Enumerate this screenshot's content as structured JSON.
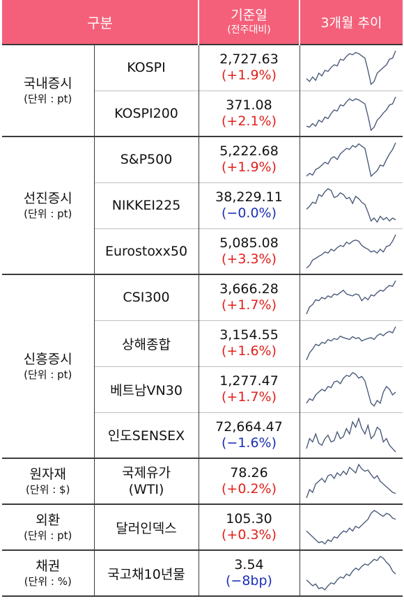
{
  "header": {
    "category": "구분",
    "base_date": "기준일",
    "base_date_sub": "(전주대비)",
    "trend": "3개월 추이"
  },
  "groups": [
    {
      "name": "국내증시",
      "unit": "(단위 : pt)"
    },
    {
      "name": "선진증시",
      "unit": "(단위 : pt)"
    },
    {
      "name": "신흥증시",
      "unit": "(단위 : pt)"
    },
    {
      "name": "원자재",
      "unit": "(단위 : $)"
    },
    {
      "name": "외환",
      "unit": "(단위 : pt)"
    },
    {
      "name": "채권",
      "unit": "(단위 : %)"
    }
  ],
  "rows": [
    {
      "name": "KOSPI",
      "value": "2,727.63",
      "change": "(+1.9%)",
      "dir": "up",
      "trend": [
        0.35,
        0.3,
        0.38,
        0.32,
        0.45,
        0.4,
        0.5,
        0.48,
        0.55,
        0.6,
        0.58,
        0.7,
        0.68,
        0.75,
        0.8,
        0.78,
        0.82,
        0.8,
        0.76,
        0.72,
        0.5,
        0.25,
        0.3,
        0.45,
        0.5,
        0.55,
        0.6,
        0.7,
        0.72,
        0.85
      ]
    },
    {
      "name": "KOSPI200",
      "value": "371.08",
      "change": "(+2.1%)",
      "dir": "up",
      "trend": [
        0.3,
        0.28,
        0.35,
        0.3,
        0.42,
        0.38,
        0.48,
        0.45,
        0.55,
        0.62,
        0.6,
        0.72,
        0.7,
        0.78,
        0.84,
        0.8,
        0.84,
        0.82,
        0.78,
        0.74,
        0.5,
        0.22,
        0.28,
        0.42,
        0.48,
        0.56,
        0.62,
        0.72,
        0.74,
        0.88
      ]
    },
    {
      "name": "S&P500",
      "value": "5,222.68",
      "change": "(+1.9%)",
      "dir": "up",
      "trend": [
        0.3,
        0.35,
        0.32,
        0.42,
        0.45,
        0.5,
        0.55,
        0.52,
        0.62,
        0.65,
        0.6,
        0.7,
        0.75,
        0.8,
        0.78,
        0.85,
        0.82,
        0.88,
        0.84,
        0.8,
        0.55,
        0.3,
        0.35,
        0.4,
        0.5,
        0.48,
        0.6,
        0.7,
        0.78,
        0.9
      ]
    },
    {
      "name": "NIKKEI225",
      "value": "38,229.11",
      "change": "(−0.0%)",
      "dir": "down",
      "trend": [
        0.5,
        0.55,
        0.62,
        0.6,
        0.75,
        0.72,
        0.8,
        0.85,
        0.82,
        0.7,
        0.72,
        0.78,
        0.75,
        0.68,
        0.7,
        0.6,
        0.72,
        0.68,
        0.62,
        0.58,
        0.45,
        0.3,
        0.35,
        0.28,
        0.38,
        0.32,
        0.36,
        0.3,
        0.35,
        0.32
      ]
    },
    {
      "name": "Eurostoxx50",
      "value": "5,085.08",
      "change": "(+3.3%)",
      "dir": "up",
      "trend": [
        0.2,
        0.25,
        0.35,
        0.38,
        0.42,
        0.45,
        0.5,
        0.48,
        0.55,
        0.52,
        0.58,
        0.62,
        0.6,
        0.68,
        0.65,
        0.7,
        0.72,
        0.7,
        0.62,
        0.58,
        0.55,
        0.5,
        0.52,
        0.48,
        0.55,
        0.5,
        0.6,
        0.62,
        0.7,
        0.82
      ]
    },
    {
      "name": "CSI300",
      "value": "3,666.28",
      "change": "(+1.7%)",
      "dir": "up",
      "trend": [
        0.2,
        0.35,
        0.4,
        0.5,
        0.48,
        0.55,
        0.52,
        0.58,
        0.55,
        0.62,
        0.6,
        0.65,
        0.7,
        0.62,
        0.6,
        0.58,
        0.62,
        0.6,
        0.48,
        0.55,
        0.5,
        0.6,
        0.58,
        0.65,
        0.7,
        0.68,
        0.75,
        0.8,
        0.78,
        0.9
      ]
    },
    {
      "name": "상해종합",
      "value": "3,154.55",
      "change": "(+1.6%)",
      "dir": "up",
      "trend": [
        0.15,
        0.3,
        0.38,
        0.48,
        0.45,
        0.52,
        0.5,
        0.58,
        0.55,
        0.6,
        0.58,
        0.65,
        0.62,
        0.6,
        0.58,
        0.64,
        0.6,
        0.62,
        0.55,
        0.58,
        0.6,
        0.62,
        0.58,
        0.66,
        0.7,
        0.66,
        0.72,
        0.75,
        0.72,
        0.85
      ]
    },
    {
      "name": "베트남VN30",
      "value": "1,277.47",
      "change": "(+1.7%)",
      "dir": "up",
      "trend": [
        0.3,
        0.38,
        0.35,
        0.45,
        0.5,
        0.55,
        0.52,
        0.6,
        0.58,
        0.68,
        0.7,
        0.65,
        0.75,
        0.8,
        0.78,
        0.85,
        0.82,
        0.75,
        0.78,
        0.7,
        0.5,
        0.3,
        0.25,
        0.35,
        0.3,
        0.5,
        0.6,
        0.55,
        0.45,
        0.5
      ]
    },
    {
      "name": "인도SENSEX",
      "value": "72,664.47",
      "change": "(−1.6%)",
      "dir": "down",
      "trend": [
        0.4,
        0.55,
        0.5,
        0.62,
        0.48,
        0.45,
        0.55,
        0.6,
        0.5,
        0.52,
        0.65,
        0.55,
        0.58,
        0.7,
        0.62,
        0.8,
        0.72,
        0.85,
        0.7,
        0.62,
        0.75,
        0.55,
        0.6,
        0.72,
        0.68,
        0.5,
        0.55,
        0.45,
        0.4,
        0.35
      ]
    },
    {
      "name": "국제유가\n(WTI)",
      "value": "78.26",
      "change": "(+0.2%)",
      "dir": "up",
      "trend": [
        0.2,
        0.35,
        0.3,
        0.45,
        0.5,
        0.55,
        0.48,
        0.6,
        0.62,
        0.55,
        0.65,
        0.6,
        0.68,
        0.62,
        0.75,
        0.7,
        0.65,
        0.8,
        0.72,
        0.68,
        0.7,
        0.62,
        0.55,
        0.6,
        0.5,
        0.45,
        0.4,
        0.35,
        0.3,
        0.28
      ]
    },
    {
      "name": "달러인덱스",
      "value": "105.30",
      "change": "(+0.3%)",
      "dir": "up",
      "trend": [
        0.5,
        0.45,
        0.4,
        0.35,
        0.3,
        0.32,
        0.28,
        0.35,
        0.32,
        0.4,
        0.38,
        0.45,
        0.5,
        0.48,
        0.55,
        0.5,
        0.58,
        0.55,
        0.6,
        0.65,
        0.7,
        0.8,
        0.85,
        0.82,
        0.78,
        0.75,
        0.8,
        0.78,
        0.72,
        0.7
      ]
    },
    {
      "name": "국고채10년물",
      "value": "3.54",
      "change": "(−8bp)",
      "dir": "down",
      "trend": [
        0.45,
        0.4,
        0.35,
        0.38,
        0.3,
        0.32,
        0.28,
        0.35,
        0.4,
        0.38,
        0.45,
        0.5,
        0.48,
        0.55,
        0.52,
        0.6,
        0.65,
        0.62,
        0.68,
        0.72,
        0.7,
        0.75,
        0.8,
        0.78,
        0.85,
        0.82,
        0.75,
        0.7,
        0.6,
        0.55
      ]
    }
  ],
  "colors": {
    "header_bg": "#f4607a",
    "up": "#e0201c",
    "down": "#1c2fb4",
    "line": "#4a5a7a"
  }
}
